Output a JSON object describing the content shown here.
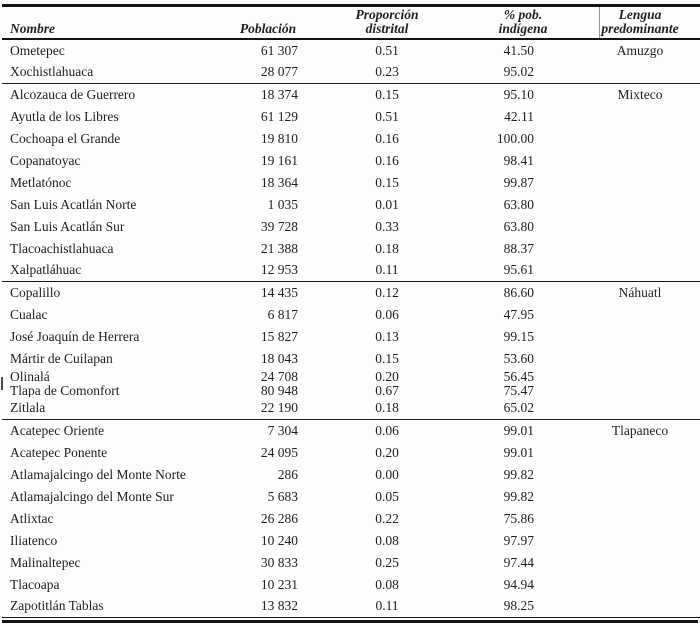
{
  "document": {
    "kind": "statistical-table-scan",
    "language": "es"
  },
  "colors": {
    "background": "#fdfdfc",
    "text": "#1f1f1f",
    "rule": "#131313"
  },
  "header": {
    "columns": [
      {
        "id": "nombre",
        "line1": "",
        "line2": "Nombre"
      },
      {
        "id": "poblacion",
        "line1": "",
        "line2": "Población"
      },
      {
        "id": "proporcion_distrital",
        "line1": "Proporción",
        "line2": "distrital"
      },
      {
        "id": "pct_pob_indigena",
        "line1": "% pob.",
        "line2": "indígena"
      },
      {
        "id": "lengua_predominante",
        "line1": "Lengua",
        "line2": "predominante"
      }
    ]
  },
  "rows": [
    {
      "nombre": "Ometepec",
      "poblacion": "61 307",
      "proporcion": "0.51",
      "pct_indigena": "41.50",
      "lengua": "Amuzgo",
      "group_start": false,
      "tight": false
    },
    {
      "nombre": "Xochistlahuaca",
      "poblacion": "28 077",
      "proporcion": "0.23",
      "pct_indigena": "95.02",
      "lengua": "",
      "group_start": false,
      "tight": false
    },
    {
      "nombre": "Alcozauca de Guerrero",
      "poblacion": "18 374",
      "proporcion": "0.15",
      "pct_indigena": "95.10",
      "lengua": "Mixteco",
      "group_start": true,
      "tight": false
    },
    {
      "nombre": "Ayutla de los Libres",
      "poblacion": "61 129",
      "proporcion": "0.51",
      "pct_indigena": "42.11",
      "lengua": "",
      "group_start": false,
      "tight": false
    },
    {
      "nombre": "Cochoapa el Grande",
      "poblacion": "19 810",
      "proporcion": "0.16",
      "pct_indigena": "100.00",
      "lengua": "",
      "group_start": false,
      "tight": false
    },
    {
      "nombre": "Copanatoyac",
      "poblacion": "19 161",
      "proporcion": "0.16",
      "pct_indigena": "98.41",
      "lengua": "",
      "group_start": false,
      "tight": false
    },
    {
      "nombre": "Metlatónoc",
      "poblacion": "18 364",
      "proporcion": "0.15",
      "pct_indigena": "99.87",
      "lengua": "",
      "group_start": false,
      "tight": false
    },
    {
      "nombre": "San Luis Acatlán Norte",
      "poblacion": "1 035",
      "proporcion": "0.01",
      "pct_indigena": "63.80",
      "lengua": "",
      "group_start": false,
      "tight": false
    },
    {
      "nombre": "San Luis Acatlán Sur",
      "poblacion": "39 728",
      "proporcion": "0.33",
      "pct_indigena": "63.80",
      "lengua": "",
      "group_start": false,
      "tight": false
    },
    {
      "nombre": "Tlacoachistlahuaca",
      "poblacion": "21 388",
      "proporcion": "0.18",
      "pct_indigena": "88.37",
      "lengua": "",
      "group_start": false,
      "tight": false
    },
    {
      "nombre": "Xalpatláhuac",
      "poblacion": "12 953",
      "proporcion": "0.11",
      "pct_indigena": "95.61",
      "lengua": "",
      "group_start": false,
      "tight": false
    },
    {
      "nombre": "Copalillo",
      "poblacion": "14 435",
      "proporcion": "0.12",
      "pct_indigena": "86.60",
      "lengua": "Náhuatl",
      "group_start": true,
      "tight": false
    },
    {
      "nombre": "Cualac",
      "poblacion": "6 817",
      "proporcion": "0.06",
      "pct_indigena": "47.95",
      "lengua": "",
      "group_start": false,
      "tight": false
    },
    {
      "nombre": "José Joaquín de Herrera",
      "poblacion": "15 827",
      "proporcion": "0.13",
      "pct_indigena": "99.15",
      "lengua": "",
      "group_start": false,
      "tight": false
    },
    {
      "nombre": "Mártir de Cuilapan",
      "poblacion": "18 043",
      "proporcion": "0.15",
      "pct_indigena": "53.60",
      "lengua": "",
      "group_start": false,
      "tight": false
    },
    {
      "nombre": "Olinalá",
      "poblacion": "24 708",
      "proporcion": "0.20",
      "pct_indigena": "56.45",
      "lengua": "",
      "group_start": false,
      "tight": true
    },
    {
      "nombre": "Tlapa de Comonfort",
      "poblacion": "80 948",
      "proporcion": "0.67",
      "pct_indigena": "75.47",
      "lengua": "",
      "group_start": false,
      "tight": true
    },
    {
      "nombre": "Zitlala",
      "poblacion": "22 190",
      "proporcion": "0.18",
      "pct_indigena": "65.02",
      "lengua": "",
      "group_start": false,
      "tight": false
    },
    {
      "nombre": "Acatepec Oriente",
      "poblacion": "7 304",
      "proporcion": "0.06",
      "pct_indigena": "99.01",
      "lengua": "Tlapaneco",
      "group_start": true,
      "tight": false
    },
    {
      "nombre": "Acatepec Ponente",
      "poblacion": "24 095",
      "proporcion": "0.20",
      "pct_indigena": "99.01",
      "lengua": "",
      "group_start": false,
      "tight": false
    },
    {
      "nombre": "Atlamajalcingo del Monte Norte",
      "poblacion": "286",
      "proporcion": "0.00",
      "pct_indigena": "99.82",
      "lengua": "",
      "group_start": false,
      "tight": false
    },
    {
      "nombre": "Atlamajalcingo del Monte Sur",
      "poblacion": "5 683",
      "proporcion": "0.05",
      "pct_indigena": "99.82",
      "lengua": "",
      "group_start": false,
      "tight": false
    },
    {
      "nombre": "Atlixtac",
      "poblacion": "26 286",
      "proporcion": "0.22",
      "pct_indigena": "75.86",
      "lengua": "",
      "group_start": false,
      "tight": false
    },
    {
      "nombre": "Iliatenco",
      "poblacion": "10 240",
      "proporcion": "0.08",
      "pct_indigena": "97.97",
      "lengua": "",
      "group_start": false,
      "tight": false
    },
    {
      "nombre": "Malinaltepec",
      "poblacion": "30 833",
      "proporcion": "0.25",
      "pct_indigena": "97.44",
      "lengua": "",
      "group_start": false,
      "tight": false
    },
    {
      "nombre": "Tlacoapa",
      "poblacion": "10 231",
      "proporcion": "0.08",
      "pct_indigena": "94.94",
      "lengua": "",
      "group_start": false,
      "tight": false
    },
    {
      "nombre": "Zapotitlán Tablas",
      "poblacion": "13 832",
      "proporcion": "0.11",
      "pct_indigena": "98.25",
      "lengua": "",
      "group_start": false,
      "tight": false
    }
  ]
}
